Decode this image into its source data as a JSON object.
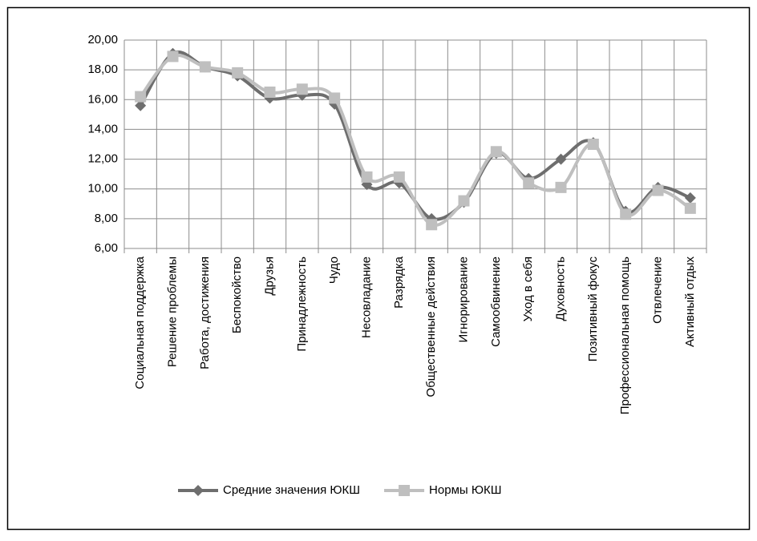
{
  "chart_data": {
    "type": "line",
    "categories": [
      "Социальная поддержка",
      "Решение проблемы",
      "Работа, достижения",
      "Беспокойство",
      "Друзья",
      "Принадлежность",
      "Чудо",
      "Несовладание",
      "Разрядка",
      "Общественные действия",
      "Игнорирование",
      "Самообвинение",
      "Уход в себя",
      "Духовность",
      "Позитивный фокус",
      "Профессиональная помощь",
      "Отвлечение",
      "Активный отдых"
    ],
    "series": [
      {
        "name": "Средние значения ЮКШ",
        "color": "#6e6e6e",
        "marker": "diamond",
        "values": [
          15.6,
          19.1,
          18.2,
          17.6,
          16.1,
          16.3,
          15.7,
          10.3,
          10.4,
          8.0,
          9.1,
          12.4,
          10.7,
          12.0,
          13.1,
          8.5,
          10.1,
          9.4
        ]
      },
      {
        "name": "Нормы ЮКШ",
        "color": "#bfbfbf",
        "marker": "square",
        "values": [
          16.2,
          18.9,
          18.2,
          17.8,
          16.5,
          16.7,
          16.1,
          10.8,
          10.8,
          7.6,
          9.2,
          12.5,
          10.4,
          10.1,
          13.0,
          8.3,
          9.9,
          8.7
        ]
      }
    ],
    "ylim": [
      6,
      20
    ],
    "yticks": [
      {
        "value": 6,
        "label": "6,00"
      },
      {
        "value": 8,
        "label": "8,00"
      },
      {
        "value": 10,
        "label": "10,00"
      },
      {
        "value": 12,
        "label": "12,00"
      },
      {
        "value": 14,
        "label": "14,00"
      },
      {
        "value": 16,
        "label": "16,00"
      },
      {
        "value": 18,
        "label": "18,00"
      },
      {
        "value": 20,
        "label": "20,00"
      }
    ],
    "grid": true,
    "smooth": true,
    "legend": "bottom"
  }
}
